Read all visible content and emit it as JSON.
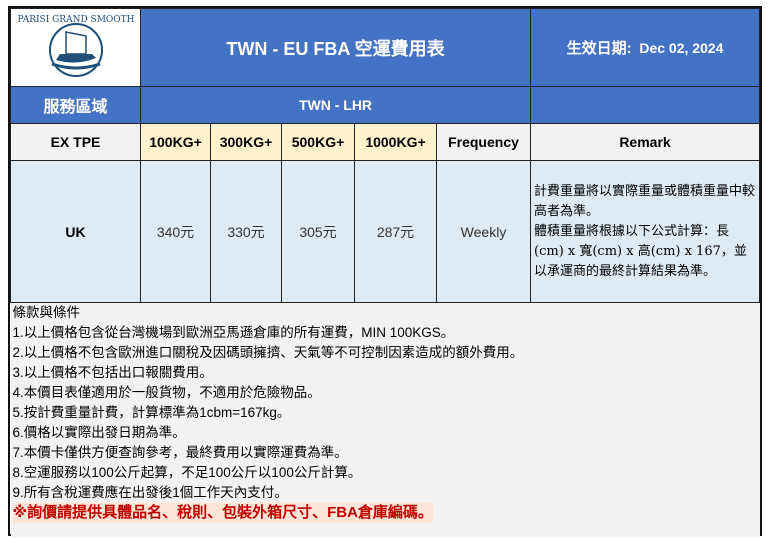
{
  "header": {
    "logo_text": "PARISI GRAND SMOOTH",
    "title": "TWN - EU FBA 空運費用表",
    "effective_label": "生效日期:",
    "effective_date": "Dec 02, 2024"
  },
  "route_row": {
    "label": "服務區域",
    "route": "TWN - LHR"
  },
  "columns": {
    "origin": "EX TPE",
    "weights": [
      "100KG+",
      "300KG+",
      "500KG+",
      "1000KG+"
    ],
    "frequency": "Frequency",
    "remark": "Remark"
  },
  "rows": [
    {
      "region": "UK",
      "prices": [
        "340元",
        "330元",
        "305元",
        "287元"
      ],
      "frequency": "Weekly",
      "remark": [
        "計費重量將以實際重量或體積重量中較高者為準。",
        "體積重量將根據以下公式計算：長(cm) x 寬(cm) x 高(cm) x 167，並以承運商的最終計算結果為準。"
      ]
    }
  ],
  "terms": {
    "title": "條款與條件",
    "items": [
      "1.以上價格包含從台灣機場到歐洲亞馬遜倉庫的所有運費，MIN 100KGS。",
      "2.以上價格不包含歐洲進口關稅及因碼頭擁擠、天氣等不可控制因素造成的額外費用。",
      "3.以上價格不包括出口報關費用。",
      "4.本價目表僅適用於一般貨物，不適用於危險物品。",
      "5.按計費重量計費，計算標準為1cbm=167kg。",
      "6.價格以實際出發日期為準。",
      "7.本價卡僅供方便查詢參考，最終費用以實際運費為準。",
      "8.空運服務以100公斤起算，不足100公斤以100公斤計算。",
      "9.所有含稅運費應在出發後1個工作天內支付。"
    ],
    "note": "※詢價請提供具體品名、稅則、包裝外箱尺寸、FBA倉庫編碼。"
  },
  "colors": {
    "header": "#4472C4",
    "weight_header": "#FFF2CC",
    "row": "#DDEBF7",
    "note": "#C00000"
  }
}
